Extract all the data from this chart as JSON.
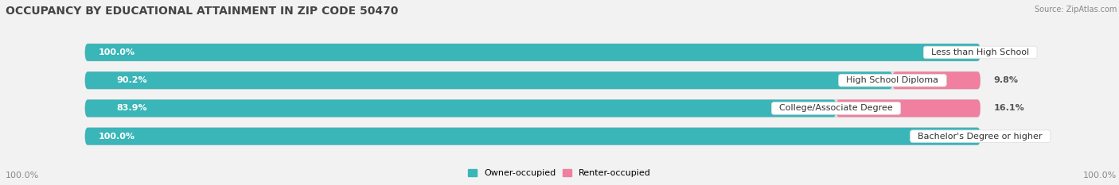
{
  "title": "OCCUPANCY BY EDUCATIONAL ATTAINMENT IN ZIP CODE 50470",
  "source": "Source: ZipAtlas.com",
  "categories": [
    "Less than High School",
    "High School Diploma",
    "College/Associate Degree",
    "Bachelor's Degree or higher"
  ],
  "owner_values": [
    100.0,
    90.2,
    83.9,
    100.0
  ],
  "renter_values": [
    0.0,
    9.8,
    16.1,
    0.0
  ],
  "owner_color": "#3ab5b8",
  "renter_color": "#f07fa0",
  "bg_color": "#f2f2f2",
  "bar_bg_color": "#e0e0e0",
  "bar_shadow_color": "#cccccc",
  "title_fontsize": 10,
  "label_fontsize": 8,
  "cat_fontsize": 8,
  "tick_fontsize": 8,
  "bar_height": 0.62,
  "total_width": 100,
  "legend_owner": "Owner-occupied",
  "legend_renter": "Renter-occupied",
  "bottom_left_label": "100.0%",
  "bottom_right_label": "100.0%"
}
